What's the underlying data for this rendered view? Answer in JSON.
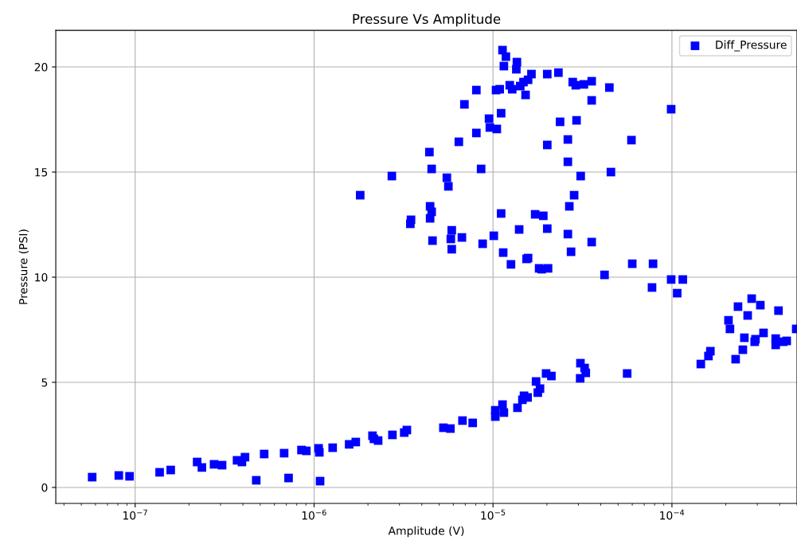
{
  "chart_data": {
    "type": "scatter",
    "title": "Pressure Vs Amplitude",
    "xlabel": "Amplitude (V)",
    "ylabel": "Pressure (PSI)",
    "log": "x",
    "grid": true,
    "legend": "top right",
    "marker": "square",
    "xlim": [
      3.6e-08,
      0.0005
    ],
    "ylim": [
      -0.76,
      21.74
    ],
    "xticks": [
      {
        "value": 1e-07,
        "label": "10$^{−7}$"
      },
      {
        "value": 1e-06,
        "label": "10$^{−6}$"
      },
      {
        "value": 1e-05,
        "label": "10$^{−5}$"
      },
      {
        "value": 0.0001,
        "label": "10$^{−4}$"
      }
    ],
    "yticks": [
      0,
      5,
      10,
      15,
      20
    ],
    "series": [
      {
        "name": "Diff_Pressure",
        "color": "#0000ff",
        "x": [
          5.75e-08,
          8.1e-08,
          9.3e-08,
          1.37e-07,
          1.58e-07,
          2.22e-07,
          2.36e-07,
          2.76e-07,
          3.06e-07,
          3.71e-07,
          3.95e-07,
          4.11e-07,
          4.75e-07,
          5.26e-07,
          6.8e-07,
          7.2e-07,
          8.5e-07,
          9.05e-07,
          1.06e-06,
          1.07e-06,
          1.08e-06,
          1.27e-06,
          1.57e-06,
          1.71e-06,
          2.12e-06,
          2.16e-06,
          2.28e-06,
          2.74e-06,
          3.19e-06,
          3.3e-06,
          5.28e-06,
          5.78e-06,
          6.75e-06,
          7.7e-06,
          1.03e-05,
          1.03e-05,
          1.13e-05,
          1.15e-05,
          1.37e-05,
          1.46e-05,
          1.49e-05,
          1.56e-05,
          1.74e-05,
          1.78e-05,
          1.83e-05,
          1.98e-05,
          2.12e-05,
          3.07e-05,
          3.08e-05,
          3.25e-05,
          3.3e-05,
          5.62e-05,
          9.9e-05,
          0.000115,
          0.000107,
          7.74e-05,
          0.000234,
          0.000279,
          0.000312,
          0.000265,
          0.000394,
          0.000207,
          0.000211,
          0.000254,
          0.000325,
          0.000293,
          0.00029,
          0.00038,
          0.00038,
          0.000438,
          0.000419,
          0.000495,
          0.000164,
          0.00016,
          0.000145,
          0.000249,
          0.000227,
          1.13e-05,
          1.18e-05,
          1.15e-05,
          1.36e-05,
          1.35e-05,
          1.64e-05,
          1.57e-05,
          1.48e-05,
          1.42e-05,
          1.24e-05,
          1.28e-05,
          1.52e-05,
          8.07e-06,
          1.04e-05,
          1.09e-05,
          6.92e-06,
          1.11e-05,
          9.5e-06,
          9.6e-06,
          1.05e-05,
          8.07e-06,
          6.44e-06,
          4.41e-06,
          4.54e-06,
          8.58e-06,
          2.72e-06,
          5.52e-06,
          5.63e-06,
          1.81e-06,
          4.45e-06,
          4.54e-06,
          4.45e-06,
          3.48e-06,
          3.45e-06,
          1.11e-05,
          1.72e-05,
          1.4e-05,
          5.88e-06,
          5.81e-06,
          5.88e-06,
          6.7e-06,
          4.59e-06,
          8.75e-06,
          1.01e-05,
          1.14e-05,
          1.26e-05,
          1.54e-05,
          1.81e-05,
          2.01e-05,
          2.32e-05,
          2.79e-05,
          2.9e-05,
          3.22e-05,
          3.56e-05,
          4.47e-05,
          3.56e-05,
          9.9e-05,
          2.37e-05,
          2.93e-05,
          2.62e-05,
          2.01e-05,
          5.94e-05,
          2.62e-05,
          3.09e-05,
          4.56e-05,
          2.84e-05,
          2.67e-05,
          1.91e-05,
          2.01e-05,
          2.62e-05,
          3.56e-05,
          2.73e-05,
          1.57e-05,
          1.87e-05,
          2.03e-05,
          6e-05,
          7.84e-05,
          4.2e-05
        ],
        "values": [
          0.49,
          0.57,
          0.53,
          0.72,
          0.83,
          1.21,
          0.95,
          1.1,
          1.06,
          1.29,
          1.21,
          1.44,
          0.34,
          1.59,
          1.63,
          0.45,
          1.78,
          1.74,
          1.86,
          1.67,
          0.3,
          1.89,
          2.05,
          2.16,
          2.46,
          2.31,
          2.23,
          2.5,
          2.61,
          2.73,
          2.84,
          2.8,
          3.18,
          3.07,
          3.67,
          3.37,
          3.94,
          3.56,
          3.79,
          4.17,
          4.36,
          4.28,
          5.04,
          4.51,
          4.7,
          5.42,
          5.3,
          5.19,
          5.91,
          5.68,
          5.45,
          5.42,
          9.89,
          9.89,
          9.24,
          9.51,
          8.6,
          8.98,
          8.67,
          8.18,
          8.41,
          7.95,
          7.54,
          7.12,
          7.35,
          7.05,
          6.93,
          7.08,
          6.78,
          6.97,
          6.93,
          7.54,
          6.48,
          6.25,
          5.87,
          6.55,
          6.1,
          20.8,
          20.49,
          20.04,
          20.23,
          19.89,
          19.66,
          19.39,
          19.28,
          19.09,
          19.13,
          18.94,
          18.67,
          18.9,
          18.9,
          18.94,
          18.22,
          17.8,
          17.54,
          17.12,
          17.05,
          16.86,
          16.44,
          15.95,
          15.15,
          15.15,
          14.81,
          14.73,
          14.32,
          13.9,
          13.37,
          13.11,
          12.8,
          12.73,
          12.54,
          13.03,
          12.99,
          12.27,
          12.23,
          11.82,
          11.33,
          11.89,
          11.74,
          11.59,
          11.97,
          11.17,
          10.61,
          10.87,
          10.42,
          19.66,
          19.73,
          19.28,
          19.13,
          19.17,
          19.32,
          19.02,
          18.41,
          17.99,
          17.39,
          17.46,
          16.55,
          16.29,
          16.52,
          15.49,
          14.81,
          15.0,
          13.9,
          13.37,
          12.92,
          12.31,
          12.05,
          11.67,
          11.21,
          10.91,
          10.38,
          10.42,
          10.64,
          10.64,
          10.11
        ]
      }
    ]
  }
}
